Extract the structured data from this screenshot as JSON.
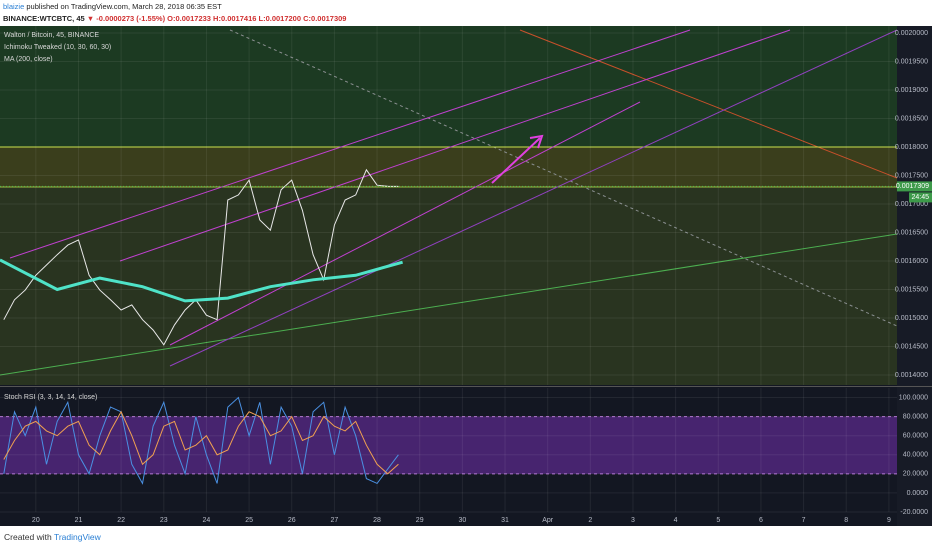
{
  "header": {
    "user": "blaizie",
    "published": "published on TradingView.com, March 28, 2018 06:35 EST",
    "symbol": "BINANCE:WTCBTC, 45",
    "change": "▼ -0.0000273 (-1.55%)",
    "ohlc": "O:0.0017233 H:0.0017416 L:0.0017200 C:0.0017309"
  },
  "footer": {
    "created": "Created with",
    "brand": "TradingView"
  },
  "chart_data": [
    {
      "type": "line",
      "title": "Walton / Bitcoin, 45, BINANCE",
      "indicator": "Ichimoku Tweaked (10, 30, 60, 30)",
      "xlim": [
        -0.84,
        20.19
      ],
      "ylim": [
        0.0013825,
        0.0020123
      ],
      "yticks": [
        {
          "value": 0.002,
          "label": "0.0020000"
        },
        {
          "value": 0.00195,
          "label": "0.0019500"
        },
        {
          "value": 0.0019,
          "label": "0.0019000"
        },
        {
          "value": 0.00185,
          "label": "0.0018500"
        },
        {
          "value": 0.0018,
          "label": "0.0018000"
        },
        {
          "value": 0.00175,
          "label": "0.0017500"
        },
        {
          "value": 0.0017,
          "label": "0.0017000"
        },
        {
          "value": 0.00165,
          "label": "0.0016500"
        },
        {
          "value": 0.0016,
          "label": "0.0016000"
        },
        {
          "value": 0.00155,
          "label": "0.0015500"
        },
        {
          "value": 0.0015,
          "label": "0.0015000"
        },
        {
          "value": 0.00145,
          "label": "0.0014500"
        },
        {
          "value": 0.0014,
          "label": "0.0014000"
        }
      ],
      "last_price": 0.0017309,
      "countdown": "24:45",
      "grid": true,
      "series": [
        {
          "color": "#e8e8e8",
          "x": [
            -0.75,
            -0.5,
            -0.25,
            0,
            0.25,
            0.5,
            0.75,
            1,
            1.25,
            1.5,
            1.75,
            2,
            2.25,
            2.5,
            2.75,
            3,
            3.25,
            3.5,
            3.75,
            4,
            4.25,
            4.5,
            4.75,
            5,
            5.25,
            5.5,
            5.75,
            6,
            6.25,
            6.5,
            6.75,
            7,
            7.25,
            7.5,
            7.75,
            8,
            8.25,
            8.5
          ],
          "values": [
            0.001497,
            0.001532,
            0.001549,
            0.001575,
            0.001593,
            0.001611,
            0.001628,
            0.001637,
            0.001575,
            0.001549,
            0.001532,
            0.001514,
            0.001523,
            0.001497,
            0.001479,
            0.001453,
            0.001488,
            0.001514,
            0.001532,
            0.001505,
            0.001497,
            0.001707,
            0.001716,
            0.001742,
            0.001672,
            0.001654,
            0.001725,
            0.001742,
            0.001689,
            0.001611,
            0.001567,
            0.001663,
            0.001707,
            0.001716,
            0.00176,
            0.001733,
            0.001731,
            0.0017309
          ]
        },
        {
          "name": "MA (200, close)",
          "color": "#4fe3c8",
          "x": [
            -0.84,
            0.5,
            1.5,
            2.5,
            3.5,
            4.5,
            5.5,
            6.5,
            7.5,
            8.6
          ],
          "values": [
            0.001602,
            0.00155,
            0.00157,
            0.001555,
            0.00153,
            0.001535,
            0.001555,
            0.001567,
            0.001575,
            0.001598
          ]
        }
      ]
    },
    {
      "type": "line",
      "title": "Stoch RSI (3, 3, 14, 14, close)",
      "xlim": [
        -0.84,
        20.19
      ],
      "ylim": [
        -20,
        110
      ],
      "band": [
        20,
        80
      ],
      "grid": true,
      "yticks": [
        {
          "value": 100,
          "label": "100.0000"
        },
        {
          "value": 80,
          "label": "80.0000"
        },
        {
          "value": 60,
          "label": "60.0000"
        },
        {
          "value": 40,
          "label": "40.0000"
        },
        {
          "value": 20,
          "label": "20.0000"
        },
        {
          "value": 0,
          "label": "0.0000"
        },
        {
          "value": -20,
          "label": "-20.0000"
        }
      ],
      "xticks": [
        {
          "value": 0,
          "label": "20"
        },
        {
          "value": 1,
          "label": "21"
        },
        {
          "value": 2,
          "label": "22"
        },
        {
          "value": 3,
          "label": "23"
        },
        {
          "value": 4,
          "label": "24"
        },
        {
          "value": 5,
          "label": "25"
        },
        {
          "value": 6,
          "label": "26"
        },
        {
          "value": 7,
          "label": "27"
        },
        {
          "value": 8,
          "label": "28"
        },
        {
          "value": 9,
          "label": "29"
        },
        {
          "value": 10,
          "label": "30"
        },
        {
          "value": 11,
          "label": "31"
        },
        {
          "value": 12,
          "label": "Apr"
        },
        {
          "value": 13,
          "label": "2"
        },
        {
          "value": 14,
          "label": "3"
        },
        {
          "value": 15,
          "label": "4"
        },
        {
          "value": 16,
          "label": "5"
        },
        {
          "value": 17,
          "label": "6"
        },
        {
          "value": 18,
          "label": "7"
        },
        {
          "value": 19,
          "label": "8"
        },
        {
          "value": 20,
          "label": "9"
        }
      ],
      "series": [
        {
          "color": "#4a90e2",
          "x": [
            -0.75,
            -0.5,
            -0.25,
            0,
            0.25,
            0.5,
            0.75,
            1,
            1.25,
            1.5,
            1.75,
            2,
            2.25,
            2.5,
            2.75,
            3,
            3.25,
            3.5,
            3.75,
            4,
            4.25,
            4.5,
            4.75,
            5,
            5.25,
            5.5,
            5.75,
            6,
            6.25,
            6.5,
            6.75,
            7,
            7.25,
            7.5,
            7.75,
            8,
            8.25,
            8.5
          ],
          "values": [
            20,
            85,
            60,
            90,
            30,
            75,
            95,
            40,
            20,
            60,
            90,
            85,
            30,
            10,
            70,
            95,
            50,
            20,
            80,
            40,
            10,
            90,
            100,
            60,
            95,
            30,
            90,
            70,
            20,
            85,
            95,
            40,
            90,
            60,
            15,
            10,
            25,
            40
          ]
        },
        {
          "color": "#f0a050",
          "x": [
            -0.75,
            -0.5,
            -0.25,
            0,
            0.25,
            0.5,
            0.75,
            1,
            1.25,
            1.5,
            1.75,
            2,
            2.25,
            2.5,
            2.75,
            3,
            3.25,
            3.5,
            3.75,
            4,
            4.25,
            4.5,
            4.75,
            5,
            5.25,
            5.5,
            5.75,
            6,
            6.25,
            6.5,
            6.75,
            7,
            7.25,
            7.5,
            7.75,
            8,
            8.25,
            8.5
          ],
          "values": [
            35,
            55,
            70,
            75,
            65,
            60,
            70,
            75,
            50,
            40,
            65,
            85,
            60,
            30,
            40,
            70,
            75,
            45,
            50,
            60,
            40,
            45,
            70,
            85,
            80,
            60,
            65,
            80,
            55,
            60,
            80,
            70,
            65,
            75,
            50,
            30,
            20,
            30
          ]
        }
      ]
    }
  ]
}
